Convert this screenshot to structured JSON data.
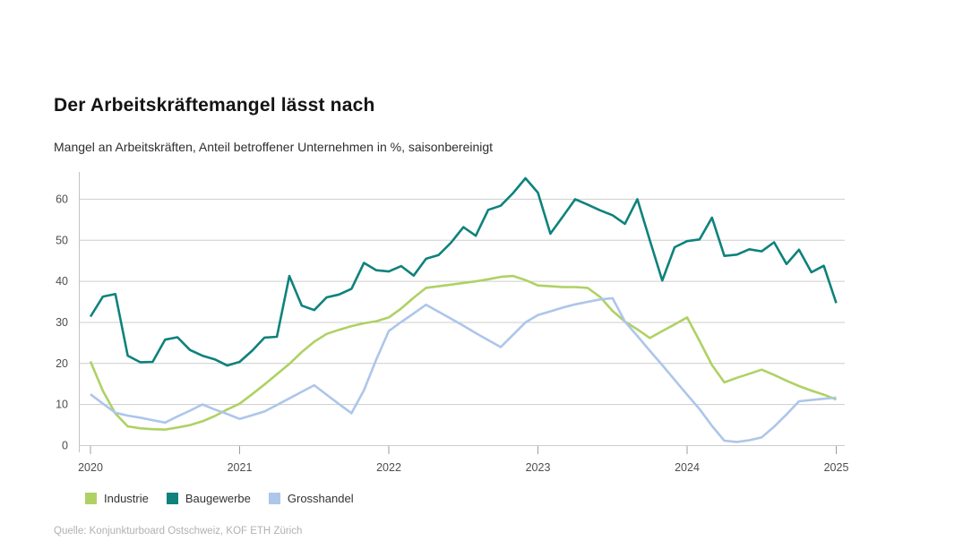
{
  "chart_data": {
    "type": "line",
    "title": "Der Arbeitskräftemangel lässt nach",
    "subtitle": "Mangel an Arbeitskräften, Anteil betroffener Unternehmen in %, saisonbereinigt",
    "source": "Quelle: Konjunkturboard Ostschweiz, KOF ETH Zürich",
    "x_axis": {
      "tick_labels": [
        "2020",
        "2021",
        "2022",
        "2023",
        "2024",
        "2025"
      ],
      "start": "2020-01",
      "frequency": "monthly"
    },
    "y_axis": {
      "tick_values": [
        "0",
        "10",
        "20",
        "30",
        "40",
        "50",
        "60"
      ],
      "range": [
        0,
        66
      ],
      "unit": "%"
    },
    "grid": true,
    "legend_position": "bottom-left",
    "series": [
      {
        "name": "Industrie",
        "color": "#afd164",
        "values": [
          20.5,
          13.3,
          7.8,
          4.7,
          4.2,
          4.0,
          3.9,
          4.4,
          5.0,
          5.9,
          7.2,
          8.8,
          10.2,
          12.5,
          14.9,
          17.4,
          19.9,
          22.8,
          25.3,
          27.2,
          28.2,
          29.1,
          29.8,
          30.3,
          31.2,
          33.4,
          36.0,
          38.4,
          38.8,
          39.2,
          39.6,
          40.0,
          40.5,
          41.1,
          41.3,
          40.3,
          39.0,
          38.8,
          38.6,
          38.6,
          38.4,
          36.2,
          32.8,
          30.2,
          28.3,
          26.2,
          27.9,
          29.5,
          31.2,
          25.5,
          19.6,
          15.4,
          16.5,
          17.5,
          18.5,
          17.2,
          15.8,
          14.5,
          13.4,
          12.4,
          11.2
        ]
      },
      {
        "name": "Baugewerbe",
        "color": "#0e827c",
        "values": [
          31.4,
          36.3,
          36.9,
          21.9,
          20.3,
          20.4,
          25.8,
          26.4,
          23.3,
          21.9,
          21.0,
          19.5,
          20.4,
          23.1,
          26.3,
          26.5,
          41.3,
          34.1,
          33.0,
          36.1,
          36.8,
          38.2,
          44.5,
          42.7,
          42.4,
          43.7,
          41.4,
          45.5,
          46.4,
          49.4,
          53.2,
          51.1,
          57.4,
          58.4,
          61.5,
          65.1,
          61.6,
          51.6,
          55.8,
          60.0,
          58.7,
          57.3,
          56.1,
          54.0,
          60.0,
          50.0,
          40.2,
          48.3,
          49.8,
          50.2,
          55.5,
          46.2,
          46.5,
          47.8,
          47.3,
          49.5,
          44.2,
          47.7,
          42.2,
          43.8,
          34.7
        ]
      },
      {
        "name": "Grosshandel",
        "color": "#adc6e9",
        "values": [
          12.5,
          10.2,
          8.0,
          7.3,
          6.8,
          6.2,
          5.6,
          7.1,
          8.5,
          10.0,
          8.8,
          7.7,
          6.5,
          7.4,
          8.3,
          9.9,
          11.5,
          13.1,
          14.7,
          12.4,
          10.1,
          7.9,
          13.5,
          21.0,
          27.9,
          30.1,
          32.2,
          34.3,
          32.6,
          30.9,
          29.2,
          27.4,
          25.7,
          24.0,
          27.0,
          30.0,
          31.8,
          32.7,
          33.6,
          34.4,
          35.0,
          35.6,
          35.9,
          30.2,
          26.7,
          23.1,
          19.6,
          16.0,
          12.4,
          8.9,
          4.8,
          1.2,
          0.9,
          1.3,
          2.0,
          4.6,
          7.6,
          10.8,
          11.1,
          11.4,
          11.7
        ]
      }
    ],
    "layout": {
      "grid_color": "#cdcdcd",
      "axis_color": "#c2c2c2",
      "tick_color": "#9e9e9e",
      "axis_label_color": "#4d4d4d"
    }
  }
}
